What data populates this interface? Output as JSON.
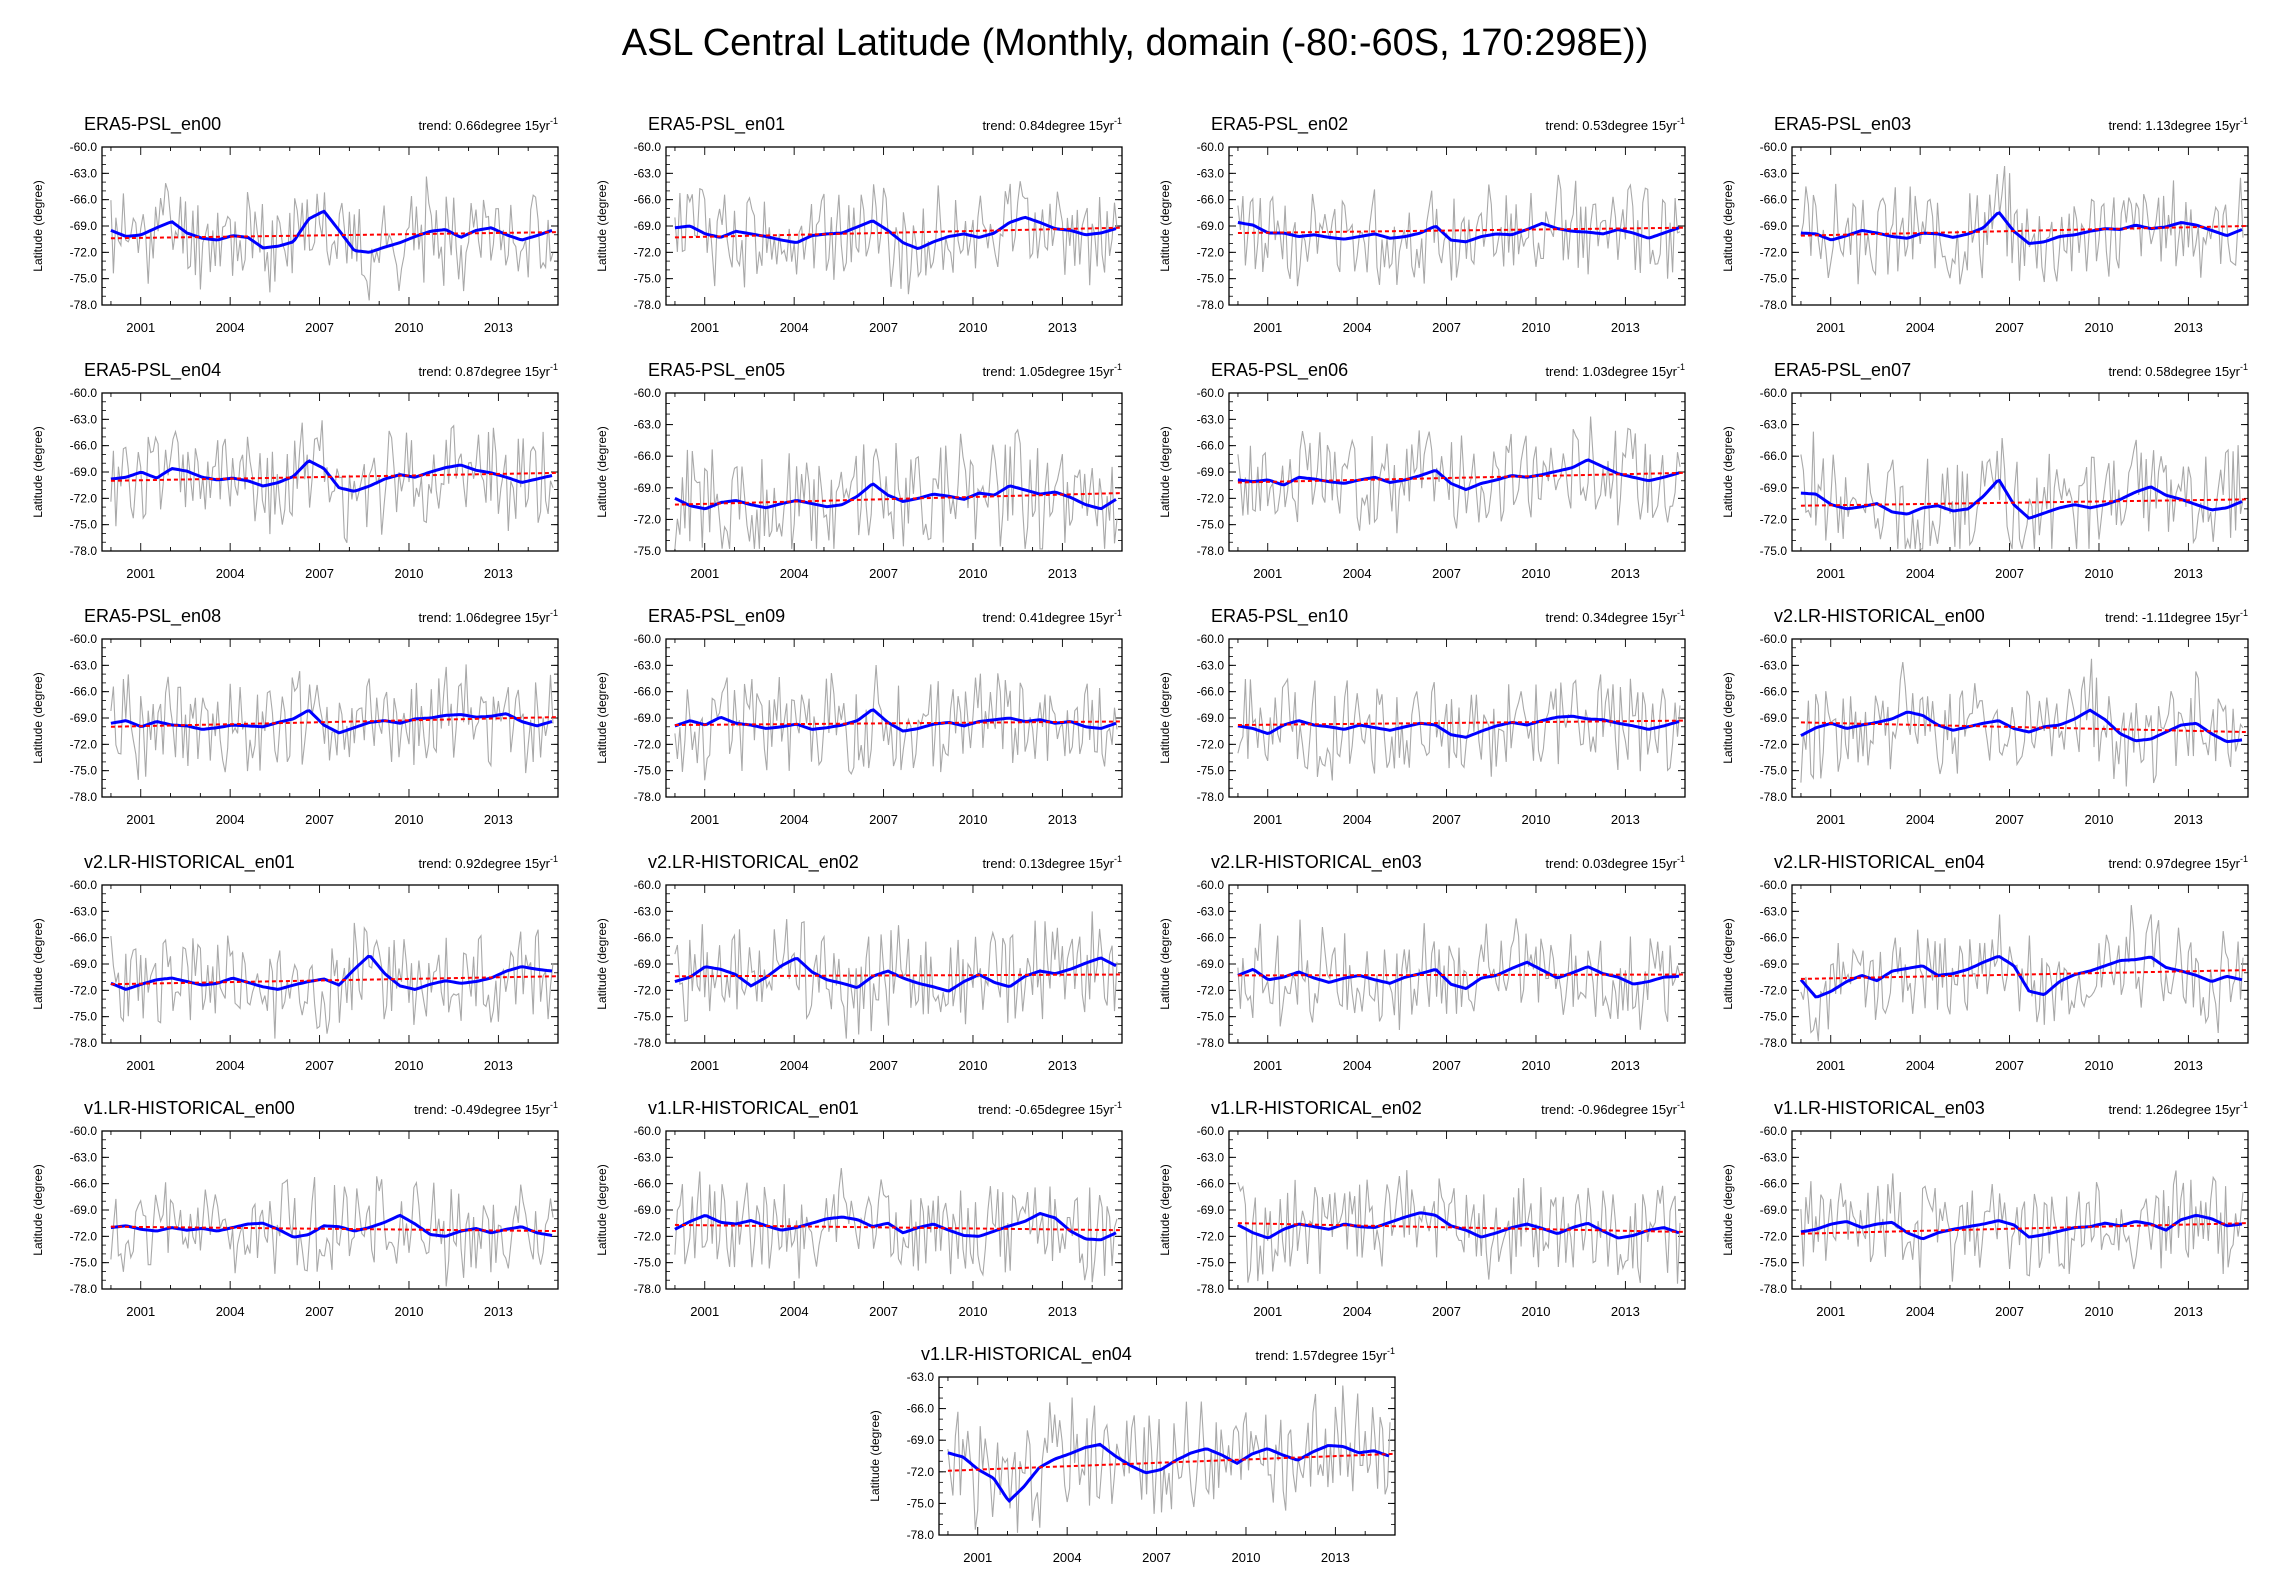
{
  "title": "ASL Central Latitude (Monthly, domain (-80:-60S, 170:298E))",
  "ylabel": "Latitude (degree)",
  "trend_prefix": "trend: ",
  "trend_unit": "degree 15yr",
  "trend_exponent": "-1",
  "x_ticks": [
    "2001",
    "2004",
    "2007",
    "2010",
    "2013"
  ],
  "colors": {
    "monthly": "#a9a9a9",
    "smoothed": "#0000ff",
    "trend": "#ff0000"
  },
  "chart_data": [
    {
      "type": "line",
      "title": "ERA5-PSL_en00",
      "trend": "0.66",
      "ylim": [
        -78,
        -60
      ],
      "yticks": [
        "-60.0",
        "-63.0",
        "-66.0",
        "-69.0",
        "-72.0",
        "-75.0",
        "-78.0"
      ],
      "trend_line": [
        -70.4,
        -69.7
      ],
      "seed": 11,
      "smooth": [
        -69.5,
        -70.2,
        -70.0,
        -69.2,
        -68.5,
        -69.8,
        -70.4,
        -70.6,
        -70.1,
        -70.3,
        -71.5,
        -71.3,
        -70.8,
        -68.2,
        -67.3,
        -69.5,
        -71.8,
        -72.0,
        -71.4,
        -70.9,
        -70.2,
        -69.6,
        -69.4,
        -70.3,
        -69.5,
        -69.2,
        -70.0,
        -70.6,
        -70.1,
        -69.5
      ]
    },
    {
      "type": "line",
      "title": "ERA5-PSL_en01",
      "trend": "0.84",
      "ylim": [
        -78,
        -60
      ],
      "yticks": [
        "-60.0",
        "-63.0",
        "-66.0",
        "-69.0",
        "-72.0",
        "-75.0",
        "-78.0"
      ],
      "trend_line": [
        -70.3,
        -69.2
      ],
      "seed": 12,
      "smooth": [
        -69.2,
        -69.0,
        -69.9,
        -70.3,
        -69.6,
        -69.9,
        -70.2,
        -70.6,
        -70.9,
        -70.1,
        -69.9,
        -69.8,
        -69.1,
        -68.4,
        -69.5,
        -70.9,
        -71.6,
        -70.8,
        -70.2,
        -69.9,
        -70.3,
        -69.8,
        -68.6,
        -68.0,
        -68.6,
        -69.3,
        -69.5,
        -70.0,
        -69.8,
        -69.3
      ]
    },
    {
      "type": "line",
      "title": "ERA5-PSL_en02",
      "trend": "0.53",
      "ylim": [
        -78,
        -60
      ],
      "yticks": [
        "-60.0",
        "-63.0",
        "-66.0",
        "-69.0",
        "-72.0",
        "-75.0",
        "-78.0"
      ],
      "trend_line": [
        -69.8,
        -69.2
      ],
      "seed": 13,
      "smooth": [
        -68.6,
        -68.9,
        -69.8,
        -69.8,
        -70.2,
        -70.0,
        -70.3,
        -70.5,
        -70.2,
        -69.9,
        -70.4,
        -70.2,
        -69.8,
        -69.0,
        -70.6,
        -70.8,
        -70.2,
        -69.9,
        -70.0,
        -69.4,
        -68.7,
        -69.3,
        -69.6,
        -69.7,
        -69.9,
        -69.4,
        -69.8,
        -70.4,
        -69.8,
        -69.2
      ]
    },
    {
      "type": "line",
      "title": "ERA5-PSL_en03",
      "trend": "1.13",
      "ylim": [
        -78,
        -60
      ],
      "yticks": [
        "-60.0",
        "-63.0",
        "-66.0",
        "-69.0",
        "-72.0",
        "-75.0",
        "-78.0"
      ],
      "trend_line": [
        -70.1,
        -69.0
      ],
      "seed": 14,
      "smooth": [
        -69.8,
        -69.9,
        -70.6,
        -70.1,
        -69.5,
        -69.8,
        -70.2,
        -70.4,
        -69.8,
        -69.9,
        -70.3,
        -69.9,
        -69.2,
        -67.4,
        -69.6,
        -71.0,
        -70.8,
        -70.2,
        -70.0,
        -69.6,
        -69.3,
        -69.4,
        -68.9,
        -69.3,
        -69.1,
        -68.6,
        -68.9,
        -69.5,
        -70.1,
        -69.4
      ]
    },
    {
      "type": "line",
      "title": "ERA5-PSL_en04",
      "trend": "0.87",
      "ylim": [
        -78,
        -60
      ],
      "yticks": [
        "-60.0",
        "-63.0",
        "-66.0",
        "-69.0",
        "-72.0",
        "-75.0",
        "-78.0"
      ],
      "trend_line": [
        -70.0,
        -69.1
      ],
      "seed": 15,
      "smooth": [
        -69.8,
        -69.6,
        -69.0,
        -69.7,
        -68.6,
        -68.9,
        -69.6,
        -69.9,
        -69.7,
        -70.0,
        -70.6,
        -70.2,
        -69.5,
        -67.7,
        -68.6,
        -70.8,
        -71.2,
        -70.6,
        -69.8,
        -69.3,
        -69.6,
        -69.0,
        -68.5,
        -68.2,
        -68.8,
        -69.1,
        -69.6,
        -70.2,
        -69.8,
        -69.4
      ]
    },
    {
      "type": "line",
      "title": "ERA5-PSL_en05",
      "trend": "1.05",
      "ylim": [
        -75,
        -60
      ],
      "yticks": [
        "-60.0",
        "-63.0",
        "-66.0",
        "-69.0",
        "-72.0",
        "-75.0"
      ],
      "trend_line": [
        -70.6,
        -69.5
      ],
      "seed": 16,
      "smooth": [
        -70.0,
        -70.7,
        -71.0,
        -70.4,
        -70.2,
        -70.6,
        -70.9,
        -70.5,
        -70.2,
        -70.5,
        -70.8,
        -70.6,
        -69.8,
        -68.6,
        -69.7,
        -70.3,
        -70.0,
        -69.6,
        -69.8,
        -70.1,
        -69.5,
        -69.7,
        -68.8,
        -69.2,
        -69.6,
        -69.4,
        -69.9,
        -70.6,
        -71.0,
        -70.1
      ]
    },
    {
      "type": "line",
      "title": "ERA5-PSL_en06",
      "trend": "1.03",
      "ylim": [
        -78,
        -60
      ],
      "yticks": [
        "-60.0",
        "-63.0",
        "-66.0",
        "-69.0",
        "-72.0",
        "-75.0",
        "-78.0"
      ],
      "trend_line": [
        -70.2,
        -69.1
      ],
      "seed": 17,
      "smooth": [
        -69.9,
        -70.1,
        -69.9,
        -70.5,
        -69.6,
        -69.8,
        -70.1,
        -70.3,
        -69.9,
        -69.6,
        -70.2,
        -69.9,
        -69.4,
        -68.8,
        -70.3,
        -71.0,
        -70.3,
        -69.9,
        -69.4,
        -69.6,
        -69.3,
        -68.9,
        -68.5,
        -67.6,
        -68.4,
        -69.2,
        -69.6,
        -70.0,
        -69.6,
        -69.1
      ]
    },
    {
      "type": "line",
      "title": "ERA5-PSL_en07",
      "trend": "0.58",
      "ylim": [
        -75,
        -60
      ],
      "yticks": [
        "-60.0",
        "-63.0",
        "-66.0",
        "-69.0",
        "-72.0",
        "-75.0"
      ],
      "trend_line": [
        -70.7,
        -70.1
      ],
      "seed": 18,
      "smooth": [
        -69.5,
        -69.6,
        -70.6,
        -71.0,
        -70.8,
        -70.5,
        -71.3,
        -71.5,
        -70.9,
        -70.7,
        -71.2,
        -71.0,
        -69.8,
        -68.2,
        -70.6,
        -71.9,
        -71.4,
        -70.9,
        -70.6,
        -70.9,
        -70.6,
        -70.1,
        -69.4,
        -68.9,
        -69.7,
        -70.1,
        -70.6,
        -71.1,
        -70.9,
        -70.3
      ]
    },
    {
      "type": "line",
      "title": "ERA5-PSL_en08",
      "trend": "1.06",
      "ylim": [
        -78,
        -60
      ],
      "yticks": [
        "-60.0",
        "-63.0",
        "-66.0",
        "-69.0",
        "-72.0",
        "-75.0",
        "-78.0"
      ],
      "trend_line": [
        -70.0,
        -68.9
      ],
      "seed": 19,
      "smooth": [
        -69.6,
        -69.3,
        -70.0,
        -69.4,
        -69.8,
        -69.9,
        -70.3,
        -70.1,
        -69.8,
        -69.9,
        -70.0,
        -69.5,
        -69.1,
        -68.1,
        -69.8,
        -70.7,
        -70.1,
        -69.5,
        -69.3,
        -69.6,
        -69.1,
        -69.0,
        -68.7,
        -68.6,
        -68.9,
        -68.8,
        -68.5,
        -69.4,
        -69.9,
        -69.4
      ]
    },
    {
      "type": "line",
      "title": "ERA5-PSL_en09",
      "trend": "0.41",
      "ylim": [
        -78,
        -60
      ],
      "yticks": [
        "-60.0",
        "-63.0",
        "-66.0",
        "-69.0",
        "-72.0",
        "-75.0",
        "-78.0"
      ],
      "trend_line": [
        -69.8,
        -69.4
      ],
      "seed": 20,
      "smooth": [
        -69.9,
        -69.3,
        -69.8,
        -68.9,
        -69.6,
        -69.8,
        -70.2,
        -70.0,
        -69.7,
        -70.3,
        -70.1,
        -69.8,
        -69.3,
        -68.0,
        -69.5,
        -70.5,
        -70.2,
        -69.7,
        -69.5,
        -69.9,
        -69.4,
        -69.2,
        -69.0,
        -69.4,
        -69.2,
        -69.6,
        -69.4,
        -70.0,
        -70.2,
        -69.6
      ]
    },
    {
      "type": "line",
      "title": "ERA5-PSL_en10",
      "trend": "0.34",
      "ylim": [
        -78,
        -60
      ],
      "yticks": [
        "-60.0",
        "-63.0",
        "-66.0",
        "-69.0",
        "-72.0",
        "-75.0",
        "-78.0"
      ],
      "trend_line": [
        -69.8,
        -69.3
      ],
      "seed": 21,
      "smooth": [
        -69.9,
        -70.2,
        -70.8,
        -69.8,
        -69.3,
        -69.8,
        -70.0,
        -70.3,
        -69.8,
        -70.1,
        -70.4,
        -70.0,
        -69.6,
        -69.8,
        -70.9,
        -71.2,
        -70.5,
        -69.9,
        -69.5,
        -69.8,
        -69.3,
        -68.9,
        -68.8,
        -69.1,
        -69.2,
        -69.6,
        -69.9,
        -70.3,
        -69.9,
        -69.4
      ]
    },
    {
      "type": "line",
      "title": "v2.LR-HISTORICAL_en00",
      "trend": "-1.11",
      "ylim": [
        -78,
        -60
      ],
      "yticks": [
        "-60.0",
        "-63.0",
        "-66.0",
        "-69.0",
        "-72.0",
        "-75.0",
        "-78.0"
      ],
      "trend_line": [
        -69.5,
        -70.6
      ],
      "seed": 22,
      "smooth": [
        -71.0,
        -70.1,
        -69.6,
        -70.2,
        -69.8,
        -69.5,
        -69.1,
        -68.3,
        -68.7,
        -69.8,
        -70.4,
        -70.0,
        -69.6,
        -69.3,
        -70.2,
        -70.6,
        -70.0,
        -69.8,
        -69.1,
        -68.1,
        -69.2,
        -70.8,
        -71.6,
        -71.4,
        -70.6,
        -69.8,
        -69.6,
        -70.8,
        -71.7,
        -71.5
      ]
    },
    {
      "type": "line",
      "title": "v2.LR-HISTORICAL_en01",
      "trend": "0.92",
      "ylim": [
        -78,
        -60
      ],
      "yticks": [
        "-60.0",
        "-63.0",
        "-66.0",
        "-69.0",
        "-72.0",
        "-75.0",
        "-78.0"
      ],
      "trend_line": [
        -71.3,
        -70.4
      ],
      "seed": 23,
      "smooth": [
        -71.2,
        -71.9,
        -71.3,
        -70.8,
        -70.6,
        -71.0,
        -71.4,
        -71.2,
        -70.6,
        -71.1,
        -71.6,
        -71.9,
        -71.4,
        -71.0,
        -70.7,
        -71.4,
        -69.6,
        -68.0,
        -70.1,
        -71.5,
        -71.9,
        -71.3,
        -70.9,
        -71.2,
        -71.0,
        -70.6,
        -69.8,
        -69.3,
        -69.6,
        -69.8
      ]
    },
    {
      "type": "line",
      "title": "v2.LR-HISTORICAL_en02",
      "trend": "0.13",
      "ylim": [
        -78,
        -60
      ],
      "yticks": [
        "-60.0",
        "-63.0",
        "-66.0",
        "-69.0",
        "-72.0",
        "-75.0",
        "-78.0"
      ],
      "trend_line": [
        -70.4,
        -70.2
      ],
      "seed": 24,
      "smooth": [
        -71.0,
        -70.5,
        -69.3,
        -69.6,
        -70.2,
        -71.5,
        -70.5,
        -69.2,
        -68.3,
        -69.9,
        -70.8,
        -71.2,
        -71.7,
        -70.4,
        -69.8,
        -70.6,
        -71.2,
        -71.6,
        -72.1,
        -71.0,
        -70.2,
        -71.1,
        -71.6,
        -70.4,
        -69.8,
        -70.1,
        -69.6,
        -68.9,
        -68.3,
        -69.2
      ]
    },
    {
      "type": "line",
      "title": "v2.LR-HISTORICAL_en03",
      "trend": "0.03",
      "ylim": [
        -78,
        -60
      ],
      "yticks": [
        "-60.0",
        "-63.0",
        "-66.0",
        "-69.0",
        "-72.0",
        "-75.0",
        "-78.0"
      ],
      "trend_line": [
        -70.3,
        -70.2
      ],
      "seed": 25,
      "smooth": [
        -70.3,
        -69.6,
        -70.8,
        -70.5,
        -69.9,
        -70.6,
        -71.1,
        -70.6,
        -70.3,
        -70.8,
        -71.2,
        -70.5,
        -70.1,
        -69.6,
        -71.3,
        -71.8,
        -70.6,
        -70.3,
        -69.5,
        -68.8,
        -69.7,
        -70.6,
        -70.0,
        -69.3,
        -70.1,
        -70.5,
        -71.3,
        -71.0,
        -70.5,
        -70.4
      ]
    },
    {
      "type": "line",
      "title": "v2.LR-HISTORICAL_en04",
      "trend": "0.97",
      "ylim": [
        -78,
        -60
      ],
      "yticks": [
        "-60.0",
        "-63.0",
        "-66.0",
        "-69.0",
        "-72.0",
        "-75.0",
        "-78.0"
      ],
      "trend_line": [
        -70.7,
        -69.7
      ],
      "seed": 26,
      "smooth": [
        -70.8,
        -72.8,
        -72.1,
        -71.0,
        -70.3,
        -70.9,
        -69.8,
        -69.5,
        -69.2,
        -70.3,
        -70.1,
        -69.6,
        -68.8,
        -68.1,
        -69.2,
        -72.1,
        -72.5,
        -71.0,
        -70.2,
        -69.8,
        -69.2,
        -68.6,
        -68.5,
        -68.2,
        -69.4,
        -69.8,
        -70.3,
        -71.0,
        -70.4,
        -70.8
      ]
    },
    {
      "type": "line",
      "title": "v1.LR-HISTORICAL_en00",
      "trend": "-0.49",
      "ylim": [
        -78,
        -60
      ],
      "yticks": [
        "-60.0",
        "-63.0",
        "-66.0",
        "-69.0",
        "-72.0",
        "-75.0",
        "-78.0"
      ],
      "trend_line": [
        -70.9,
        -71.4
      ],
      "seed": 27,
      "smooth": [
        -71.0,
        -70.8,
        -71.2,
        -71.4,
        -71.0,
        -71.3,
        -71.1,
        -71.4,
        -71.0,
        -70.6,
        -70.5,
        -71.2,
        -72.1,
        -71.8,
        -70.8,
        -70.9,
        -71.4,
        -71.0,
        -70.4,
        -69.6,
        -70.6,
        -71.8,
        -72.0,
        -71.4,
        -71.1,
        -71.6,
        -71.2,
        -70.9,
        -71.6,
        -71.9
      ]
    },
    {
      "type": "line",
      "title": "v1.LR-HISTORICAL_en01",
      "trend": "-0.65",
      "ylim": [
        -78,
        -60
      ],
      "yticks": [
        "-60.0",
        "-63.0",
        "-66.0",
        "-69.0",
        "-72.0",
        "-75.0",
        "-78.0"
      ],
      "trend_line": [
        -70.7,
        -71.3
      ],
      "seed": 28,
      "smooth": [
        -71.2,
        -70.3,
        -69.6,
        -70.4,
        -70.6,
        -70.2,
        -70.8,
        -71.3,
        -71.0,
        -70.5,
        -70.0,
        -69.8,
        -70.1,
        -70.9,
        -70.5,
        -71.6,
        -71.0,
        -70.6,
        -71.3,
        -71.9,
        -72.0,
        -71.4,
        -70.8,
        -70.3,
        -69.4,
        -69.9,
        -71.4,
        -72.3,
        -72.4,
        -71.6
      ]
    },
    {
      "type": "line",
      "title": "v1.LR-HISTORICAL_en02",
      "trend": "-0.96",
      "ylim": [
        -78,
        -60
      ],
      "yticks": [
        "-60.0",
        "-63.0",
        "-66.0",
        "-69.0",
        "-72.0",
        "-75.0",
        "-78.0"
      ],
      "trend_line": [
        -70.5,
        -71.5
      ],
      "seed": 29,
      "smooth": [
        -70.7,
        -71.6,
        -72.2,
        -71.2,
        -70.6,
        -70.9,
        -71.2,
        -70.6,
        -70.9,
        -71.0,
        -70.4,
        -69.8,
        -69.3,
        -69.6,
        -70.8,
        -71.3,
        -72.1,
        -71.6,
        -71.0,
        -70.6,
        -71.1,
        -71.7,
        -71.0,
        -70.5,
        -71.4,
        -72.2,
        -71.9,
        -71.3,
        -71.0,
        -71.6
      ]
    },
    {
      "type": "line",
      "title": "v1.LR-HISTORICAL_en03",
      "trend": "1.26",
      "ylim": [
        -78,
        -60
      ],
      "yticks": [
        "-60.0",
        "-63.0",
        "-66.0",
        "-69.0",
        "-72.0",
        "-75.0",
        "-78.0"
      ],
      "trend_line": [
        -71.7,
        -70.5
      ],
      "seed": 30,
      "smooth": [
        -71.5,
        -71.2,
        -70.6,
        -70.3,
        -71.0,
        -70.6,
        -70.4,
        -71.6,
        -72.3,
        -71.6,
        -71.2,
        -70.9,
        -70.6,
        -70.2,
        -70.7,
        -72.1,
        -71.8,
        -71.4,
        -71.0,
        -70.9,
        -70.5,
        -70.8,
        -70.3,
        -70.6,
        -71.3,
        -70.1,
        -69.6,
        -70.0,
        -70.8,
        -70.6
      ]
    },
    {
      "type": "line",
      "title": "v1.LR-HISTORICAL_en04",
      "trend": "1.57",
      "ylim": [
        -78,
        -63
      ],
      "yticks": [
        "-63.0",
        "-66.0",
        "-69.0",
        "-72.0",
        "-75.0",
        "-78.0"
      ],
      "trend_line": [
        -71.9,
        -70.3
      ],
      "seed": 31,
      "smooth": [
        -70.2,
        -70.6,
        -71.8,
        -72.6,
        -74.8,
        -73.4,
        -71.6,
        -70.8,
        -70.3,
        -69.7,
        -69.4,
        -70.5,
        -71.4,
        -72.1,
        -71.8,
        -70.9,
        -70.2,
        -69.8,
        -70.4,
        -71.2,
        -70.3,
        -69.8,
        -70.4,
        -70.9,
        -70.1,
        -69.5,
        -69.6,
        -70.2,
        -70.0,
        -70.5
      ]
    }
  ]
}
